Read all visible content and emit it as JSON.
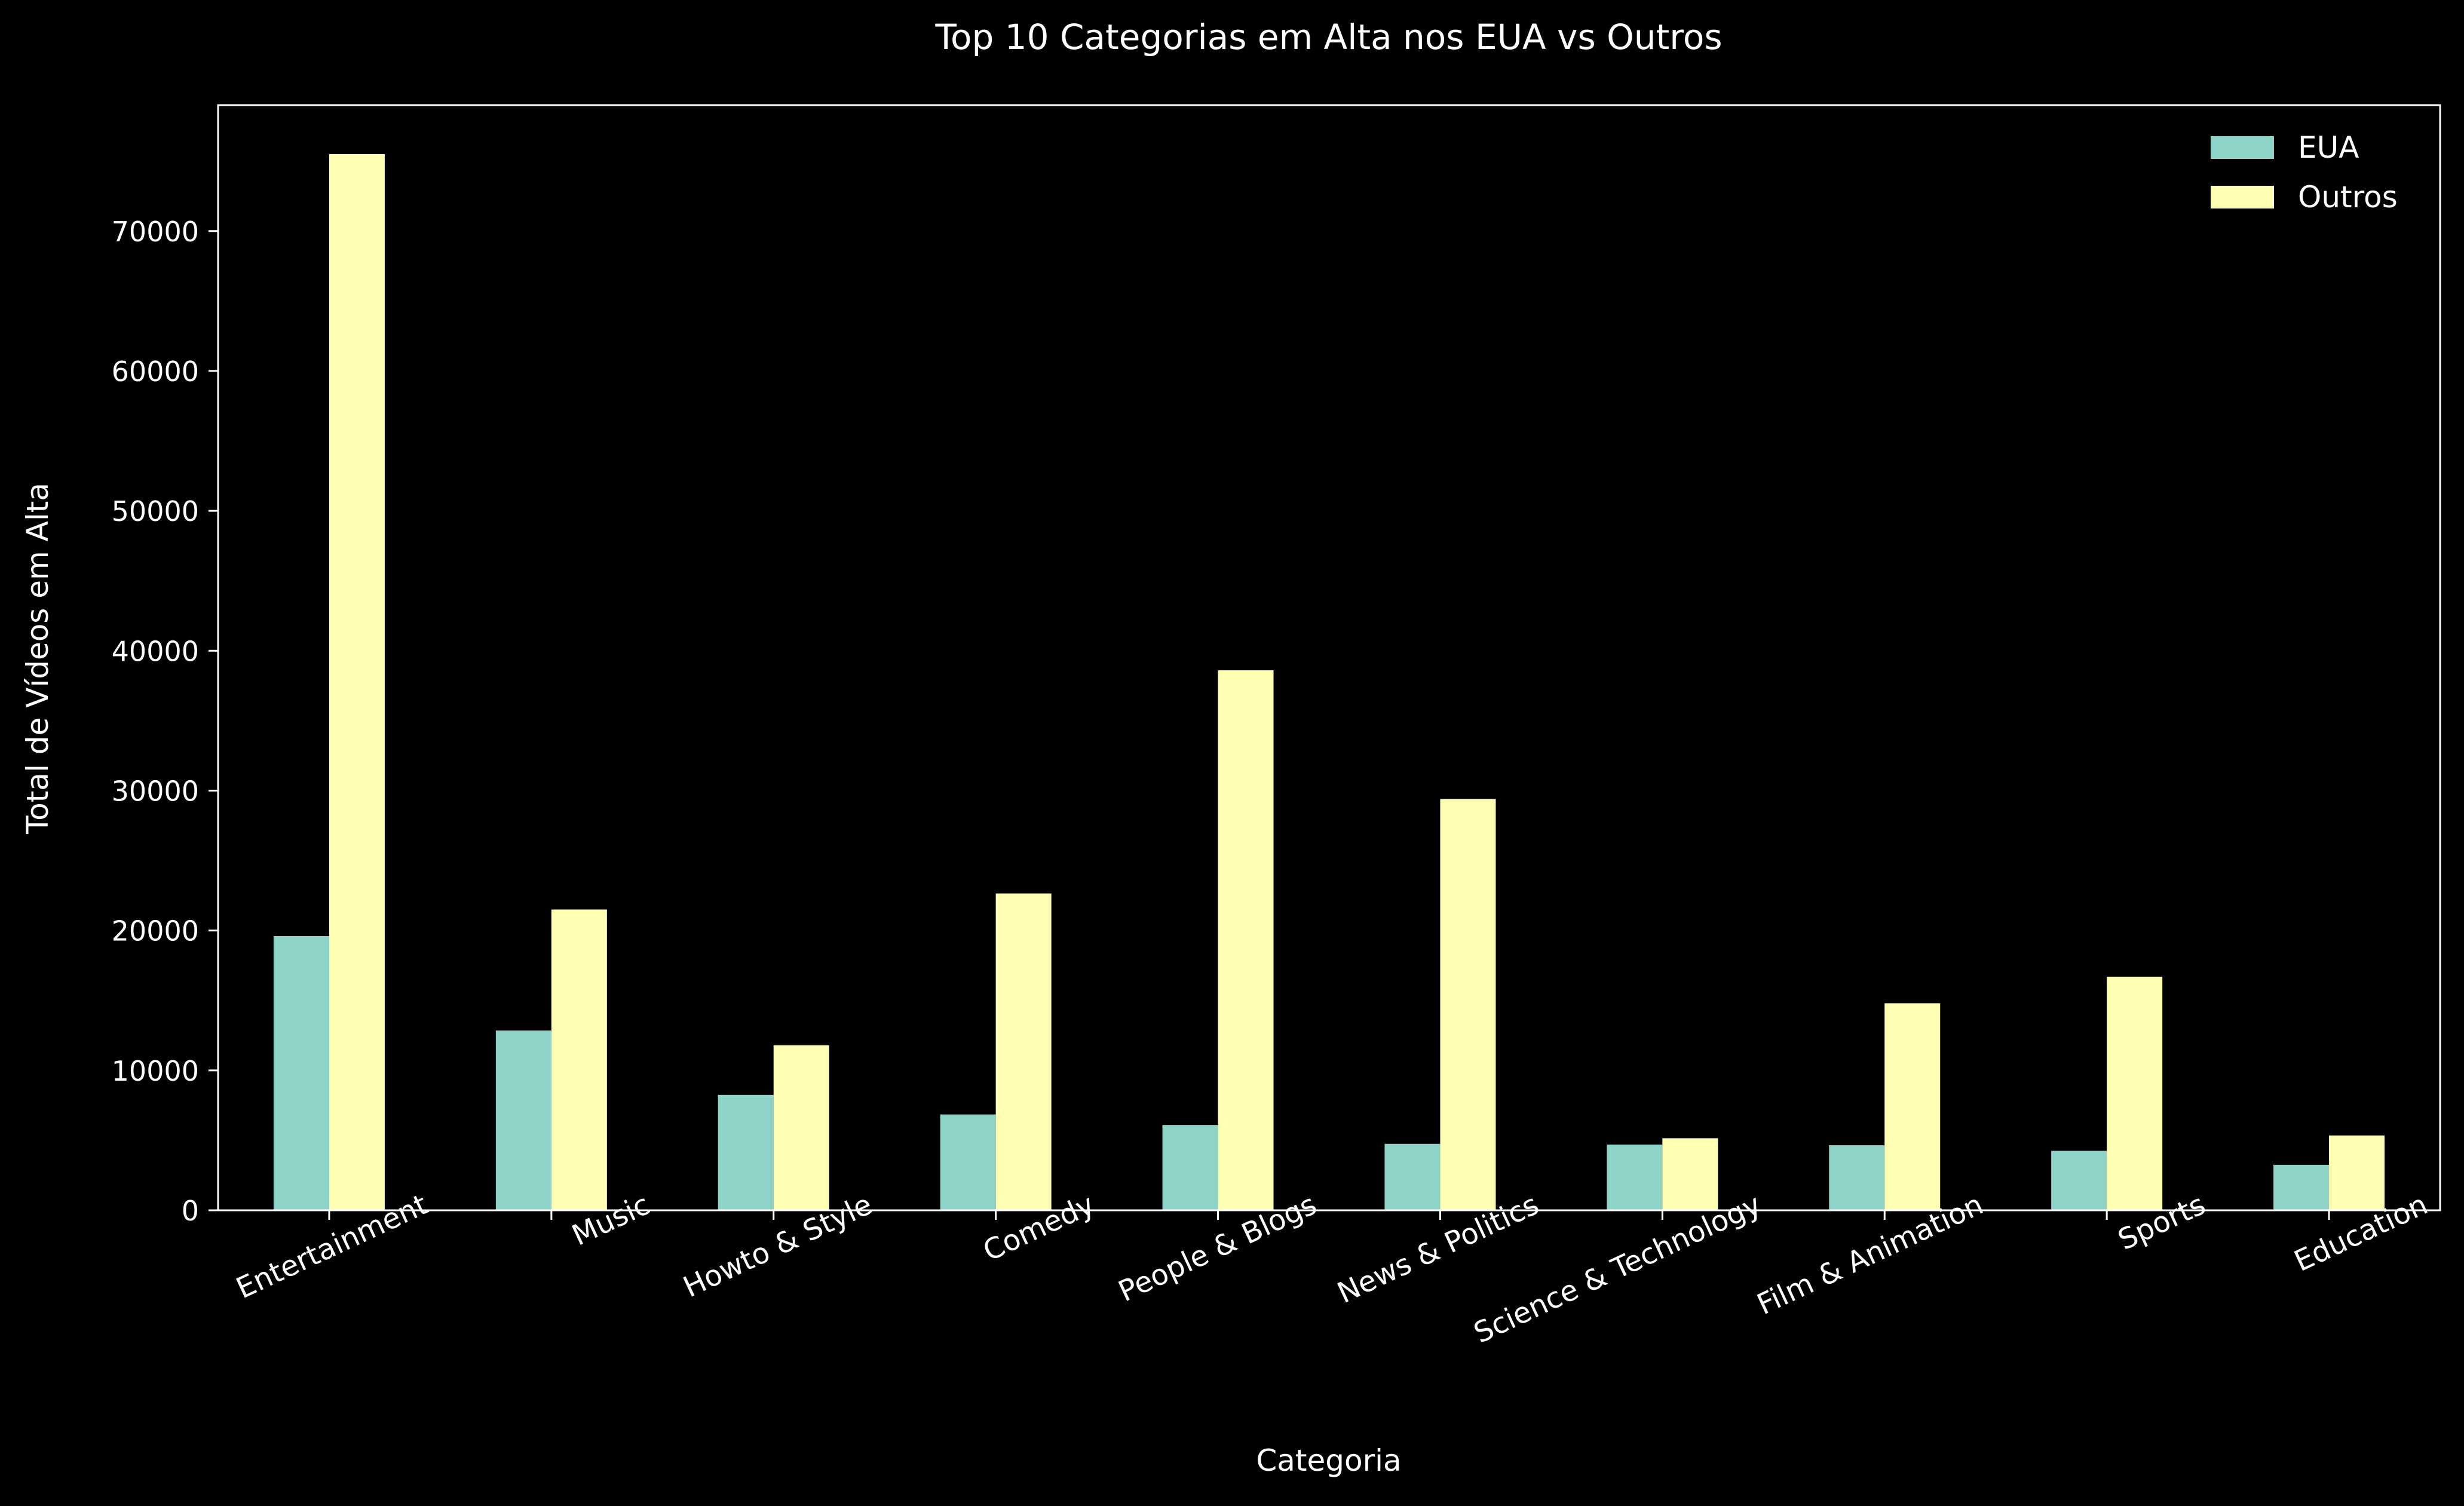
{
  "chart_data": {
    "type": "bar",
    "title": "Top 10 Categorias em Alta nos EUA vs Outros",
    "xlabel": "Categoria",
    "ylabel": "Total de Vídeos em Alta",
    "categories": [
      "Entertainment",
      "Music",
      "Howto & Style",
      "Comedy",
      "People & Blogs",
      "News & Politics",
      "Science & Technology",
      "Film & Animation",
      "Sports",
      "Education"
    ],
    "series": [
      {
        "name": "EUA",
        "color": "#8dd3c7",
        "values": [
          19600,
          12850,
          8250,
          6850,
          6100,
          4750,
          4700,
          4650,
          4250,
          3250
        ]
      },
      {
        "name": "Outros",
        "color": "#ffffb3",
        "values": [
          75500,
          21500,
          11800,
          22650,
          38600,
          29400,
          5150,
          14800,
          16700,
          5350
        ]
      }
    ],
    "ylim": [
      0,
      79000
    ],
    "yticks": [
      0,
      10000,
      20000,
      30000,
      40000,
      50000,
      60000,
      70000
    ],
    "legend_position": "top-right",
    "grid": false,
    "background": "#000000",
    "foreground": "#ffffff"
  }
}
